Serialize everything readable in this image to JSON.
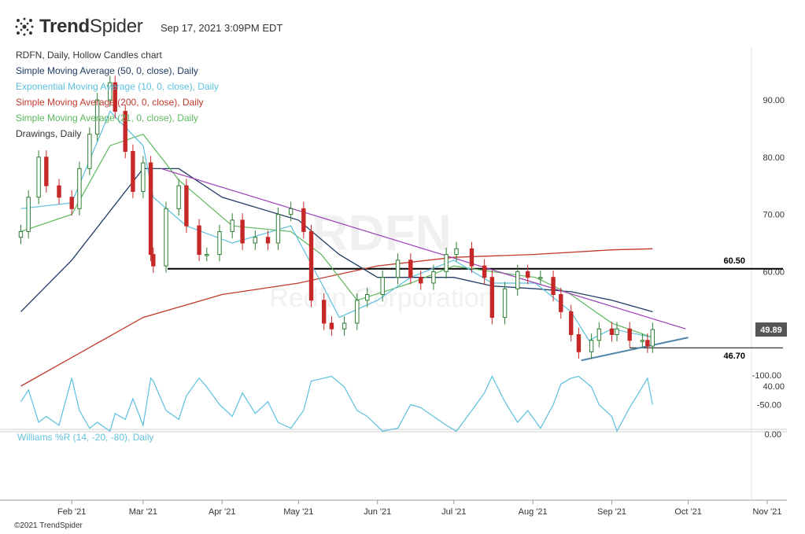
{
  "header": {
    "brand_light": "Trend",
    "brand_bold": "Spider",
    "timestamp": "Sep 17, 2021 3:09PM EDT"
  },
  "legend": [
    {
      "text": "RDFN, Daily, Hollow Candles chart",
      "color": "#333333"
    },
    {
      "text": "Simple Moving Average (50, 0, close), Daily",
      "color": "#1f3b63"
    },
    {
      "text": "Exponential Moving Average (10, 0, close), Daily",
      "color": "#5bc0de"
    },
    {
      "text": "Simple Moving Average (200, 0, close), Daily",
      "color": "#c0392b"
    },
    {
      "text": "Simple Moving Average (21, 0, close), Daily",
      "color": "#5cb85c"
    },
    {
      "text": "Drawings, Daily",
      "color": "#333333"
    }
  ],
  "watermark": {
    "symbol": "RDFN",
    "company": "Redfin Corporation"
  },
  "footer": {
    "copyright": "©2021 TrendSpider"
  },
  "chart_data": [
    {
      "type": "candlestick",
      "ticker": "RDFN",
      "y_ticks": [
        40,
        50,
        60,
        70,
        80,
        90
      ],
      "y_tick_labels": [
        "40.00",
        "50.00",
        "60.00",
        "70.00",
        "80.00",
        "90.00"
      ],
      "ylim": [
        35,
        103
      ],
      "x_ticks": [
        "Feb '21",
        "Mar '21",
        "Apr '21",
        "May '21",
        "Jun '21",
        "Jul '21",
        "Aug '21",
        "Sep '21",
        "Oct '21",
        "Nov '21"
      ],
      "last_price": {
        "label": "49.89",
        "value": 49.89
      },
      "horizontal_levels": [
        {
          "label": "60.50",
          "value": 60.5,
          "color": "#000000"
        },
        {
          "label": "46.70",
          "value": 46.7,
          "color": "#000000"
        }
      ],
      "close_series": [
        [
          "2021-01-12",
          67
        ],
        [
          "2021-01-15",
          73
        ],
        [
          "2021-01-19",
          80
        ],
        [
          "2021-01-22",
          75
        ],
        [
          "2021-01-27",
          73
        ],
        [
          "2021-02-01",
          71
        ],
        [
          "2021-02-04",
          78
        ],
        [
          "2021-02-08",
          84
        ],
        [
          "2021-02-11",
          90
        ],
        [
          "2021-02-16",
          93
        ],
        [
          "2021-02-18",
          88
        ],
        [
          "2021-02-22",
          81
        ],
        [
          "2021-02-25",
          74
        ],
        [
          "2021-03-01",
          79
        ],
        [
          "2021-03-04",
          63
        ],
        [
          "2021-03-05",
          61
        ],
        [
          "2021-03-10",
          71
        ],
        [
          "2021-03-15",
          75
        ],
        [
          "2021-03-18",
          68
        ],
        [
          "2021-03-23",
          63
        ],
        [
          "2021-03-26",
          63
        ],
        [
          "2021-03-31",
          67
        ],
        [
          "2021-04-05",
          69
        ],
        [
          "2021-04-09",
          65
        ],
        [
          "2021-04-14",
          66
        ],
        [
          "2021-04-19",
          65
        ],
        [
          "2021-04-23",
          70
        ],
        [
          "2021-04-28",
          71
        ],
        [
          "2021-05-03",
          67
        ],
        [
          "2021-05-06",
          55
        ],
        [
          "2021-05-11",
          51
        ],
        [
          "2021-05-14",
          50
        ],
        [
          "2021-05-19",
          51
        ],
        [
          "2021-05-24",
          55
        ],
        [
          "2021-05-28",
          56
        ],
        [
          "2021-06-03",
          59
        ],
        [
          "2021-06-09",
          62
        ],
        [
          "2021-06-14",
          59
        ],
        [
          "2021-06-18",
          58
        ],
        [
          "2021-06-23",
          60
        ],
        [
          "2021-06-28",
          63
        ],
        [
          "2021-07-02",
          64
        ],
        [
          "2021-07-08",
          61
        ],
        [
          "2021-07-13",
          59
        ],
        [
          "2021-07-16",
          52
        ],
        [
          "2021-07-21",
          57
        ],
        [
          "2021-07-26",
          60
        ],
        [
          "2021-07-30",
          59
        ],
        [
          "2021-08-04",
          59
        ],
        [
          "2021-08-09",
          56
        ],
        [
          "2021-08-12",
          53
        ],
        [
          "2021-08-16",
          49
        ],
        [
          "2021-08-19",
          46
        ],
        [
          "2021-08-24",
          48
        ],
        [
          "2021-08-27",
          50
        ],
        [
          "2021-09-01",
          49
        ],
        [
          "2021-09-03",
          50
        ],
        [
          "2021-09-08",
          48
        ],
        [
          "2021-09-13",
          48
        ],
        [
          "2021-09-15",
          47
        ],
        [
          "2021-09-17",
          49.89
        ]
      ],
      "sma50": [
        [
          "2021-01-12",
          53
        ],
        [
          "2021-02-01",
          62
        ],
        [
          "2021-03-01",
          78
        ],
        [
          "2021-03-15",
          78
        ],
        [
          "2021-04-01",
          73
        ],
        [
          "2021-05-01",
          69
        ],
        [
          "2021-05-17",
          63
        ],
        [
          "2021-06-01",
          59
        ],
        [
          "2021-07-01",
          59
        ],
        [
          "2021-07-16",
          57.5
        ],
        [
          "2021-08-02",
          57
        ],
        [
          "2021-08-16",
          56.5
        ],
        [
          "2021-09-01",
          55
        ],
        [
          "2021-09-17",
          53
        ]
      ],
      "ema10": [
        [
          "2021-01-12",
          71
        ],
        [
          "2021-02-01",
          72
        ],
        [
          "2021-02-16",
          88
        ],
        [
          "2021-03-01",
          82
        ],
        [
          "2021-03-05",
          73
        ],
        [
          "2021-03-18",
          68
        ],
        [
          "2021-04-05",
          65
        ],
        [
          "2021-04-28",
          68
        ],
        [
          "2021-05-10",
          58
        ],
        [
          "2021-05-17",
          52
        ],
        [
          "2021-06-01",
          55
        ],
        [
          "2021-06-14",
          59
        ],
        [
          "2021-07-01",
          62
        ],
        [
          "2021-07-16",
          58
        ],
        [
          "2021-08-02",
          58
        ],
        [
          "2021-08-16",
          53
        ],
        [
          "2021-08-23",
          48
        ],
        [
          "2021-09-01",
          50
        ],
        [
          "2021-09-17",
          48.5
        ]
      ],
      "sma200": [
        [
          "2021-01-12",
          40
        ],
        [
          "2021-02-01",
          45
        ],
        [
          "2021-03-01",
          52
        ],
        [
          "2021-04-01",
          56
        ],
        [
          "2021-05-01",
          58
        ],
        [
          "2021-06-01",
          61
        ],
        [
          "2021-07-01",
          62.5
        ],
        [
          "2021-08-01",
          63
        ],
        [
          "2021-09-01",
          63.8
        ],
        [
          "2021-09-17",
          64
        ]
      ],
      "sma21": [
        [
          "2021-01-12",
          67
        ],
        [
          "2021-02-01",
          70
        ],
        [
          "2021-02-16",
          82
        ],
        [
          "2021-03-01",
          84
        ],
        [
          "2021-03-15",
          76
        ],
        [
          "2021-04-05",
          68
        ],
        [
          "2021-04-28",
          67
        ],
        [
          "2021-05-10",
          63
        ],
        [
          "2021-05-24",
          55
        ],
        [
          "2021-06-14",
          58
        ],
        [
          "2021-07-01",
          61
        ],
        [
          "2021-07-16",
          60
        ],
        [
          "2021-08-02",
          59
        ],
        [
          "2021-08-16",
          56
        ],
        [
          "2021-09-01",
          51
        ],
        [
          "2021-09-17",
          48.5
        ]
      ],
      "trendlines": [
        {
          "name": "descending resistance",
          "color": "#9b3fb5",
          "points": [
            [
              "2021-03-08",
              78
            ],
            [
              "2021-09-30",
              50
            ]
          ]
        },
        {
          "name": "ascending support",
          "color": "#4f86a8",
          "points": [
            [
              "2021-08-20",
              44.5
            ],
            [
              "2021-10-01",
              48.5
            ]
          ]
        }
      ]
    },
    {
      "type": "line",
      "name": "Williams %R (14, -20, -80), Daily",
      "y_ticks": [
        0,
        -50,
        -100
      ],
      "y_tick_labels": [
        "0.00",
        "-50.00",
        "-100.00"
      ],
      "ylim": [
        -103,
        3
      ],
      "band": [
        -20,
        -80
      ],
      "values": [
        [
          "2021-01-12",
          -55
        ],
        [
          "2021-01-15",
          -75
        ],
        [
          "2021-01-19",
          -20
        ],
        [
          "2021-01-22",
          -30
        ],
        [
          "2021-01-27",
          -15
        ],
        [
          "2021-02-01",
          -95
        ],
        [
          "2021-02-04",
          -40
        ],
        [
          "2021-02-08",
          -10
        ],
        [
          "2021-02-11",
          -20
        ],
        [
          "2021-02-16",
          -5
        ],
        [
          "2021-02-18",
          -35
        ],
        [
          "2021-02-22",
          -25
        ],
        [
          "2021-02-25",
          -60
        ],
        [
          "2021-03-01",
          -15
        ],
        [
          "2021-03-04",
          -95
        ],
        [
          "2021-03-05",
          -90
        ],
        [
          "2021-03-10",
          -40
        ],
        [
          "2021-03-15",
          -25
        ],
        [
          "2021-03-18",
          -65
        ],
        [
          "2021-03-23",
          -95
        ],
        [
          "2021-03-26",
          -80
        ],
        [
          "2021-03-31",
          -50
        ],
        [
          "2021-04-05",
          -30
        ],
        [
          "2021-04-09",
          -70
        ],
        [
          "2021-04-14",
          -35
        ],
        [
          "2021-04-19",
          -55
        ],
        [
          "2021-04-23",
          -20
        ],
        [
          "2021-04-28",
          -10
        ],
        [
          "2021-05-03",
          -40
        ],
        [
          "2021-05-06",
          -90
        ],
        [
          "2021-05-11",
          -95
        ],
        [
          "2021-05-14",
          -98
        ],
        [
          "2021-05-19",
          -80
        ],
        [
          "2021-05-24",
          -40
        ],
        [
          "2021-05-28",
          -30
        ],
        [
          "2021-06-03",
          -5
        ],
        [
          "2021-06-09",
          -10
        ],
        [
          "2021-06-14",
          -50
        ],
        [
          "2021-06-18",
          -45
        ],
        [
          "2021-06-23",
          -30
        ],
        [
          "2021-06-28",
          -15
        ],
        [
          "2021-07-02",
          -5
        ],
        [
          "2021-07-08",
          -40
        ],
        [
          "2021-07-13",
          -70
        ],
        [
          "2021-07-16",
          -98
        ],
        [
          "2021-07-21",
          -55
        ],
        [
          "2021-07-26",
          -20
        ],
        [
          "2021-07-30",
          -40
        ],
        [
          "2021-08-04",
          -10
        ],
        [
          "2021-08-09",
          -50
        ],
        [
          "2021-08-12",
          -85
        ],
        [
          "2021-08-16",
          -95
        ],
        [
          "2021-08-19",
          -98
        ],
        [
          "2021-08-24",
          -80
        ],
        [
          "2021-08-27",
          -50
        ],
        [
          "2021-09-01",
          -30
        ],
        [
          "2021-09-03",
          -5
        ],
        [
          "2021-09-08",
          -45
        ],
        [
          "2021-09-13",
          -80
        ],
        [
          "2021-09-15",
          -95
        ],
        [
          "2021-09-17",
          -50
        ]
      ]
    }
  ]
}
